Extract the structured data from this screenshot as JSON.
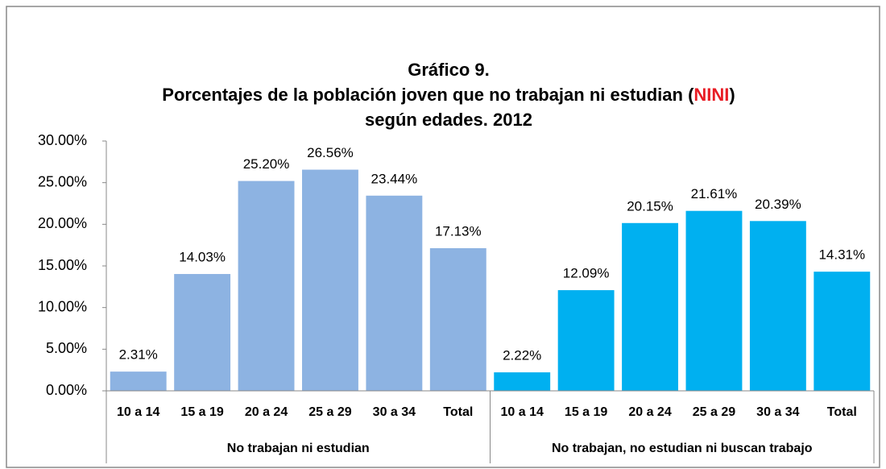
{
  "chart_data": {
    "type": "bar",
    "title": {
      "line1": "Gráfico 9.",
      "line2": [
        "Porcentajes de la población joven que no trabajan ni estudian (",
        "NINI",
        ")"
      ],
      "line3": "según edades. 2012"
    },
    "categories": [
      "10 a 14",
      "15 a 19",
      "20 a 24",
      "25 a 29",
      "30 a 34",
      "Total"
    ],
    "series": [
      {
        "name": "No trabajan ni estudian",
        "color": "#8db3e2",
        "values": [
          2.31,
          14.03,
          25.2,
          26.56,
          23.44,
          17.13
        ],
        "value_labels": [
          "2.31%",
          "14.03%",
          "25.20%",
          "26.56%",
          "23.44%",
          "17.13%"
        ]
      },
      {
        "name": "No trabajan, no estudian ni buscan trabajo",
        "color": "#00b0f0",
        "values": [
          2.22,
          12.09,
          20.15,
          21.61,
          20.39,
          14.31
        ],
        "value_labels": [
          "2.22%",
          "12.09%",
          "20.15%",
          "21.61%",
          "20.39%",
          "14.31%"
        ]
      }
    ],
    "ylim": [
      0,
      30
    ],
    "yticks": [
      {
        "value": 0,
        "label": "0.00%"
      },
      {
        "value": 5,
        "label": "5.00%"
      },
      {
        "value": 10,
        "label": "10.00%"
      },
      {
        "value": 15,
        "label": "15.00%"
      },
      {
        "value": 20,
        "label": "20.00%"
      },
      {
        "value": 25,
        "label": "25.00%"
      },
      {
        "value": 30,
        "label": "30.00%"
      }
    ],
    "title_accent_color": "#e81c24"
  }
}
